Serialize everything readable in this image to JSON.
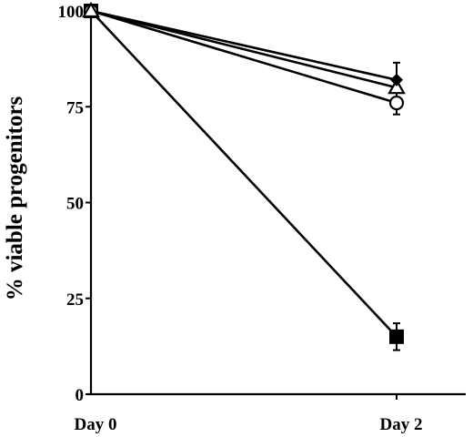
{
  "chart_data": {
    "type": "line",
    "title": "",
    "xlabel": "",
    "ylabel": "% viable progenitors",
    "categories": [
      "Day 0",
      "Day 2"
    ],
    "ylim": [
      0,
      100
    ],
    "yticks": [
      "0",
      "25",
      "50",
      "75",
      "100"
    ],
    "grid": false,
    "legend": "none",
    "series": [
      {
        "marker": "diamond-filled",
        "values": [
          100,
          82
        ],
        "error": [
          0,
          4.5
        ]
      },
      {
        "marker": "triangle-open",
        "values": [
          100,
          80
        ],
        "error": [
          0,
          0
        ]
      },
      {
        "marker": "circle-open",
        "values": [
          100,
          76
        ],
        "error": [
          0,
          3
        ]
      },
      {
        "marker": "square-filled",
        "values": [
          100,
          15
        ],
        "error": [
          0,
          3.5
        ]
      }
    ],
    "colors": {
      "ink": "#000000",
      "background": "#ffffff"
    }
  }
}
